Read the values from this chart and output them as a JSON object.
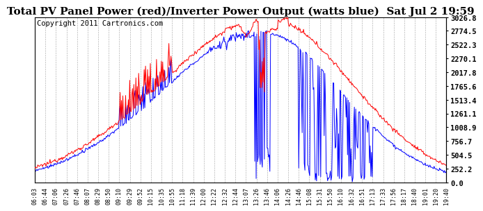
{
  "title": "Total PV Panel Power (red)/Inverter Power Output (watts blue)  Sat Jul 2 19:59",
  "copyright": "Copyright 2011 Cartronics.com",
  "ylabel_right_ticks": [
    0.0,
    252.2,
    504.5,
    756.7,
    1008.9,
    1261.1,
    1513.4,
    1765.6,
    2017.8,
    2270.1,
    2522.3,
    2774.5,
    3026.8
  ],
  "x_labels": [
    "06:03",
    "06:44",
    "07:06",
    "07:26",
    "07:46",
    "08:07",
    "08:29",
    "08:50",
    "09:10",
    "09:29",
    "09:52",
    "10:15",
    "10:35",
    "10:55",
    "11:18",
    "11:39",
    "12:00",
    "12:22",
    "12:32",
    "12:44",
    "13:07",
    "13:26",
    "13:46",
    "14:06",
    "14:26",
    "14:46",
    "15:08",
    "15:31",
    "15:50",
    "16:10",
    "16:32",
    "16:51",
    "17:13",
    "17:33",
    "17:56",
    "18:17",
    "18:40",
    "19:01",
    "19:20",
    "19:40"
  ],
  "ymax": 3026.8,
  "ymin": 0.0,
  "bg_color": "#ffffff",
  "grid_color": "#999999",
  "line_red": "#ff0000",
  "line_blue": "#0000ff",
  "title_fontsize": 11,
  "copyright_fontsize": 7.5
}
